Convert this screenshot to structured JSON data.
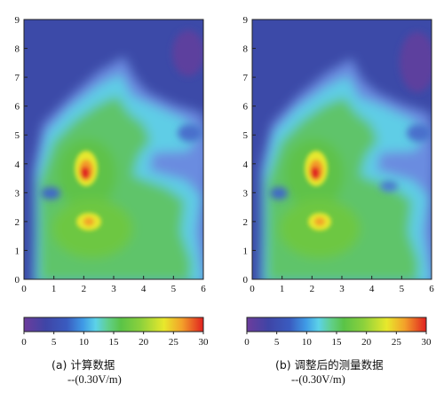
{
  "chart_data": [
    {
      "type": "heatmap",
      "title": "",
      "xlabel": "",
      "ylabel": "",
      "xlim": [
        0,
        6
      ],
      "ylim": [
        0,
        9
      ],
      "xticks": [
        "0",
        "1",
        "2",
        "3",
        "4",
        "5",
        "6"
      ],
      "yticks": [
        "0",
        "1",
        "2",
        "3",
        "4",
        "5",
        "6",
        "7",
        "8",
        "9"
      ],
      "colorbar": {
        "min": 0,
        "max": 30,
        "ticks": [
          "0",
          "5",
          "10",
          "15",
          "20",
          "25",
          "30"
        ]
      },
      "caption": "(a) 计算数据",
      "unit": "--(0.30V/m)",
      "hotspots": [
        {
          "x": 2.05,
          "y": 3.65,
          "value": 29
        },
        {
          "x": 2.1,
          "y": 2.0,
          "value": 25
        }
      ],
      "background_value": 5,
      "plume_value": 16
    },
    {
      "type": "heatmap",
      "title": "",
      "xlabel": "",
      "ylabel": "",
      "xlim": [
        0,
        6
      ],
      "ylim": [
        0,
        9
      ],
      "xticks": [
        "0",
        "1",
        "2",
        "3",
        "4",
        "5",
        "6"
      ],
      "yticks": [
        "0",
        "1",
        "2",
        "3",
        "4",
        "5",
        "6",
        "7",
        "8",
        "9"
      ],
      "colorbar": {
        "min": 0,
        "max": 30,
        "ticks": [
          "0",
          "5",
          "10",
          "15",
          "20",
          "25",
          "30"
        ]
      },
      "caption": "(b) 调整后的测量数据",
      "unit": "--(0.30V/m)",
      "hotspots": [
        {
          "x": 2.1,
          "y": 3.65,
          "value": 28
        },
        {
          "x": 2.15,
          "y": 2.0,
          "value": 24
        }
      ],
      "background_value": 5,
      "plume_value": 16
    }
  ]
}
